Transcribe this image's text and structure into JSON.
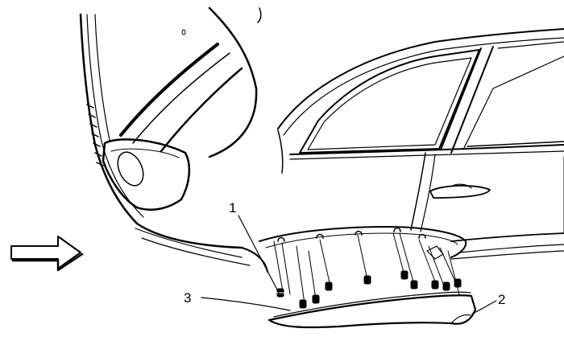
{
  "callouts": {
    "c1": "1",
    "c2": "2",
    "c3": "3"
  },
  "colors": {
    "line": "#000000",
    "background": "#ffffff"
  },
  "icons": {
    "direction_arrow": "forward-arrow-icon"
  }
}
